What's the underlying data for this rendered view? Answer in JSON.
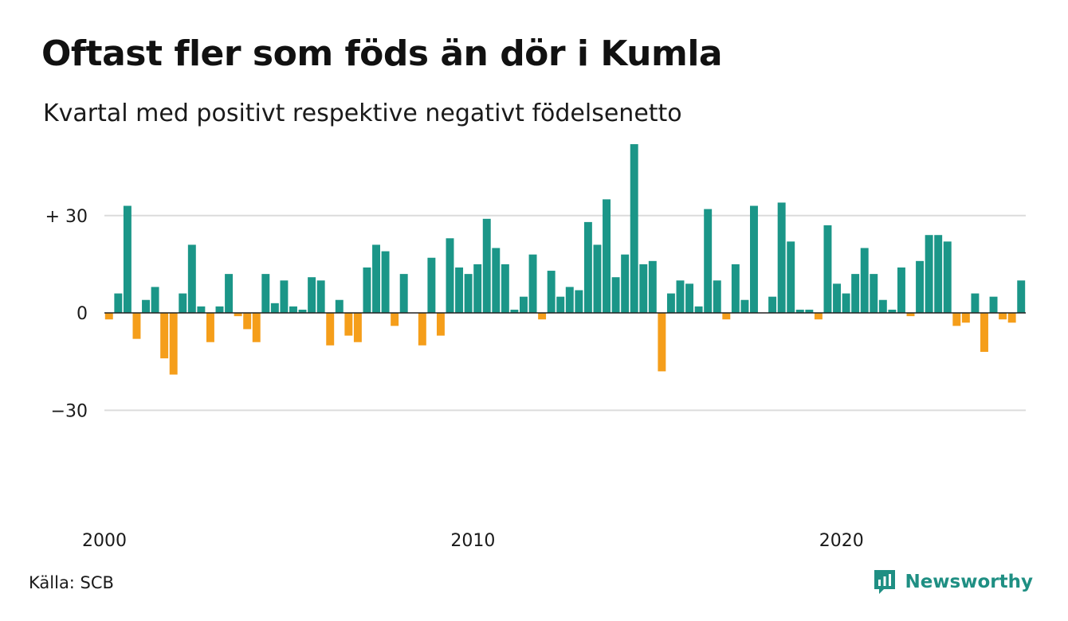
{
  "title": "Oftast fler som föds än dör i Kumla",
  "subtitle": "Kvartal med positivt respektive negativt födelsenetto",
  "source": "Källa: SCB",
  "brand": {
    "name": "Newsworthy",
    "icon": "newsworthy-logo-icon",
    "color": "#1f8f83"
  },
  "chart_data": {
    "type": "bar",
    "x_unit": "quarter",
    "x_start": "2000 Q1",
    "values": [
      -2,
      6,
      33,
      -8,
      4,
      8,
      -14,
      -19,
      6,
      21,
      2,
      -9,
      2,
      12,
      -1,
      -5,
      -9,
      12,
      3,
      10,
      2,
      1,
      11,
      10,
      -10,
      4,
      -7,
      -9,
      14,
      21,
      19,
      -4,
      12,
      0,
      -10,
      17,
      -7,
      23,
      14,
      12,
      15,
      29,
      20,
      15,
      1,
      5,
      18,
      -2,
      13,
      5,
      8,
      7,
      28,
      21,
      35,
      11,
      18,
      52,
      15,
      16,
      -18,
      6,
      10,
      9,
      2,
      32,
      10,
      -2,
      15,
      4,
      33,
      0,
      5,
      34,
      22,
      1,
      1,
      -2,
      27,
      9,
      6,
      12,
      20,
      12,
      4,
      1,
      14,
      -1,
      16,
      24,
      24,
      22,
      -4,
      -3,
      6,
      -12,
      5,
      -2,
      -3,
      10
    ],
    "x_ticks": [
      {
        "label": "2000",
        "index": 0
      },
      {
        "label": "2010",
        "index": 40
      },
      {
        "label": "2020",
        "index": 80
      }
    ],
    "y_ticks": [
      {
        "label": "+ 30",
        "value": 30
      },
      {
        "label": "0",
        "value": 0
      },
      {
        "label": "−30",
        "value": -30
      }
    ],
    "ylim": [
      -52,
      53
    ],
    "grid": true,
    "colors": {
      "positive": "#1b9688",
      "negative": "#f59e1a",
      "grid": "#dcdcdc",
      "zero_line": "#222222"
    }
  }
}
